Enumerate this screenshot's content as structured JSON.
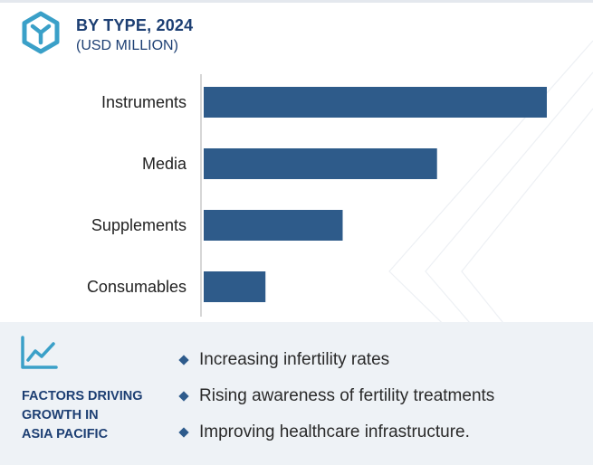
{
  "header": {
    "title": "BY TYPE, 2024",
    "subtitle": "(USD MILLION)"
  },
  "chart_data": {
    "type": "bar",
    "orientation": "horizontal",
    "categories": [
      "Instruments",
      "Media",
      "Supplements",
      "Consumables"
    ],
    "values": [
      100,
      68,
      40.5,
      18
    ],
    "xlim": [
      0,
      100
    ],
    "bar_color": "#2e5b8a",
    "grid": false,
    "title": "BY TYPE, 2024",
    "xlabel": "",
    "ylabel": ""
  },
  "factors": {
    "title": "FACTORS DRIVING\nGROWTH IN\nASIA PACIFIC",
    "icon": "trend-chart-icon",
    "items": [
      "Increasing infertility rates",
      "Rising awareness of fertility treatments",
      "Improving healthcare infrastructure."
    ]
  },
  "colors": {
    "accent": "#1d3f73",
    "bar": "#2e5b8a",
    "panel_bg": "#eef2f6",
    "logo": "#3aa0c8"
  }
}
